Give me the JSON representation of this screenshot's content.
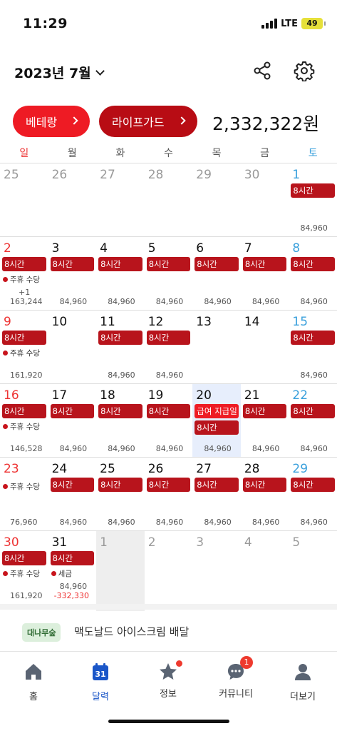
{
  "status": {
    "time": "11:29",
    "network": "LTE",
    "battery": "49"
  },
  "header": {
    "month_label": "2023년 7월"
  },
  "pills": {
    "a_label": "베테랑",
    "b_label": "라이프가드",
    "total": "2,332,322원"
  },
  "weekdays": [
    "일",
    "월",
    "화",
    "수",
    "목",
    "금",
    "토"
  ],
  "colors": {
    "accent": "#ee1b24",
    "accent_dark": "#b80c14",
    "tag": "#b8141c",
    "sunday": "#e33333",
    "saturday": "#3aa0dc",
    "active_tab": "#1a56c8"
  },
  "weeks": [
    {
      "days": [
        {
          "num": "25",
          "muted": true
        },
        {
          "num": "26",
          "muted": true
        },
        {
          "num": "27",
          "muted": true
        },
        {
          "num": "28",
          "muted": true
        },
        {
          "num": "29",
          "muted": true
        },
        {
          "num": "30",
          "muted": true
        },
        {
          "num": "1",
          "tag": "8시간",
          "amount": "84,960"
        }
      ]
    },
    {
      "days": [
        {
          "num": "2",
          "tag": "8시간",
          "note": "주휴 수당",
          "plus": "+1",
          "amount": "163,244"
        },
        {
          "num": "3",
          "tag": "8시간",
          "amount": "84,960"
        },
        {
          "num": "4",
          "tag": "8시간",
          "amount": "84,960"
        },
        {
          "num": "5",
          "tag": "8시간",
          "amount": "84,960"
        },
        {
          "num": "6",
          "tag": "8시간",
          "amount": "84,960"
        },
        {
          "num": "7",
          "tag": "8시간",
          "amount": "84,960"
        },
        {
          "num": "8",
          "tag": "8시간",
          "amount": "84,960"
        }
      ]
    },
    {
      "days": [
        {
          "num": "9",
          "tag": "8시간",
          "note": "주휴 수당",
          "amount": "161,920"
        },
        {
          "num": "10"
        },
        {
          "num": "11",
          "tag": "8시간",
          "amount": "84,960"
        },
        {
          "num": "12",
          "tag": "8시간",
          "amount": "84,960"
        },
        {
          "num": "13"
        },
        {
          "num": "14"
        },
        {
          "num": "15",
          "tag": "8시간",
          "amount": "84,960"
        }
      ]
    },
    {
      "days": [
        {
          "num": "16",
          "tag": "8시간",
          "note": "주휴 수당",
          "amount": "146,528"
        },
        {
          "num": "17",
          "tag": "8시간",
          "amount": "84,960"
        },
        {
          "num": "18",
          "tag": "8시간",
          "amount": "84,960"
        },
        {
          "num": "19",
          "tag": "8시간",
          "amount": "84,960"
        },
        {
          "num": "20",
          "payday": "급여 지급일",
          "tag": "8시간",
          "amount": "84,960",
          "today": true
        },
        {
          "num": "21",
          "tag": "8시간",
          "amount": "84,960"
        },
        {
          "num": "22",
          "tag": "8시간",
          "amount": "84,960"
        }
      ]
    },
    {
      "days": [
        {
          "num": "23",
          "note": "주휴 수당",
          "amount": "76,960"
        },
        {
          "num": "24",
          "tag": "8시간",
          "amount": "84,960"
        },
        {
          "num": "25",
          "tag": "8시간",
          "amount": "84,960"
        },
        {
          "num": "26",
          "tag": "8시간",
          "amount": "84,960"
        },
        {
          "num": "27",
          "tag": "8시간",
          "amount": "84,960"
        },
        {
          "num": "28",
          "tag": "8시간",
          "amount": "84,960"
        },
        {
          "num": "29",
          "tag": "8시간",
          "amount": "84,960"
        }
      ]
    },
    {
      "days": [
        {
          "num": "30",
          "tag": "8시간",
          "note": "주휴 수당",
          "amount": "161,920"
        },
        {
          "num": "31",
          "tag": "8시간",
          "note": "세금",
          "amount": "84,960",
          "neg": "-332,330"
        },
        {
          "num": "1",
          "muted": true,
          "disabled": true
        },
        {
          "num": "2",
          "muted": true
        },
        {
          "num": "3",
          "muted": true
        },
        {
          "num": "4",
          "muted": true
        },
        {
          "num": "5",
          "muted": true
        }
      ]
    }
  ],
  "banner": {
    "badge": "대나무숲",
    "text": "맥도날드 아이스크림 배달"
  },
  "tabs": [
    {
      "label": "홈",
      "icon": "home-icon"
    },
    {
      "label": "달력",
      "icon": "calendar-icon",
      "icon_text": "31",
      "active": true
    },
    {
      "label": "정보",
      "icon": "star-icon",
      "dot": true
    },
    {
      "label": "커뮤니티",
      "icon": "chat-icon",
      "badge": "1"
    },
    {
      "label": "더보기",
      "icon": "person-icon"
    }
  ]
}
